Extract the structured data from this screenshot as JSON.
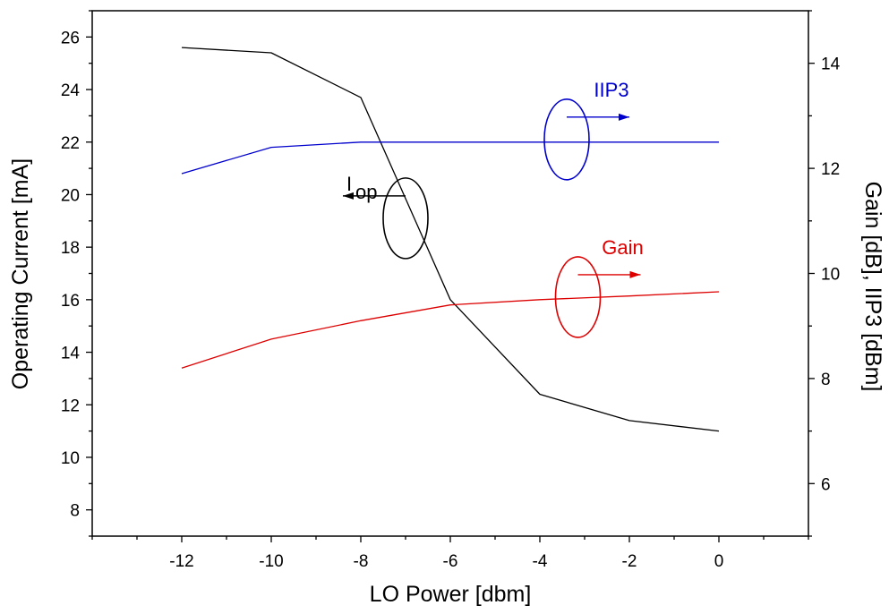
{
  "chart_data": {
    "type": "line",
    "xlabel": "LO Power [dbm]",
    "ylabel_left": "Operating Current [mA]",
    "ylabel_right": "Gain [dB], IIP3 [dBm]",
    "xlim": [
      -14,
      2
    ],
    "ylim_left": [
      7,
      27
    ],
    "ylim_right": [
      5,
      15
    ],
    "x_ticks": [
      -12,
      -10,
      -8,
      -6,
      -4,
      -2,
      0
    ],
    "y_left_ticks": [
      8,
      10,
      12,
      14,
      16,
      18,
      20,
      22,
      24,
      26
    ],
    "y_right_ticks": [
      6,
      8,
      10,
      12,
      14
    ],
    "series": [
      {
        "axis": "left",
        "color": "#000000",
        "x": [
          -12,
          -10,
          -8,
          -6,
          -4,
          -2,
          0
        ],
        "y": [
          25.6,
          25.4,
          23.7,
          16.0,
          12.4,
          11.4,
          11.0
        ]
      },
      {
        "axis": "right",
        "color": "#0000cc",
        "x": [
          -12,
          -10,
          -8,
          -6,
          -4,
          -2,
          0
        ],
        "y": [
          11.9,
          12.4,
          12.5,
          12.5,
          12.5,
          12.5,
          12.5
        ]
      },
      {
        "axis": "right",
        "color": "#dd0000",
        "x": [
          -12,
          -10,
          -8,
          -6,
          -4,
          -2,
          0
        ],
        "y": [
          8.2,
          8.75,
          9.1,
          9.4,
          9.5,
          9.57,
          9.65
        ]
      }
    ],
    "annotations": [
      {
        "id": "iip3",
        "text": "IIP3",
        "color": "#0000cc",
        "direction": "right",
        "x": -3.4,
        "y_axis": "right",
        "y": 12.55
      },
      {
        "id": "gain",
        "text": "Gain",
        "color": "#dd0000",
        "direction": "right",
        "x": -3.15,
        "y_axis": "right",
        "y": 9.55
      },
      {
        "id": "iop",
        "text": "I",
        "subscript": "op",
        "color": "#000000",
        "direction": "left",
        "x": -7.0,
        "y_axis": "left",
        "y": 19.1
      }
    ]
  }
}
